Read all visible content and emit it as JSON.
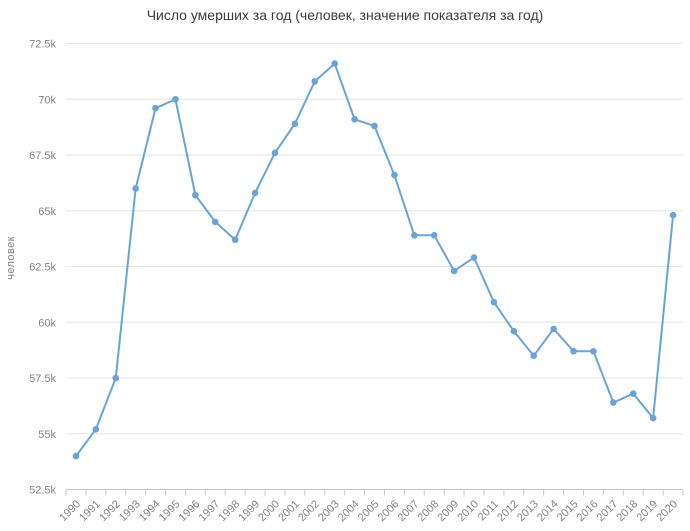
{
  "style": {
    "accent": "#68a4da",
    "grid_color": "#e6e6e6",
    "axis_color": "#c9c9c9",
    "tick_text_color": "#858585",
    "title_color": "#3d3d3d",
    "background": "#ffffff"
  },
  "chart_data": {
    "type": "line",
    "title": "Число умерших за год (человек, значение показателя за год)",
    "ylabel": "человек",
    "xlabel": "",
    "categories": [
      "1990",
      "1991",
      "1992",
      "1993",
      "1994",
      "1995",
      "1996",
      "1997",
      "1998",
      "1999",
      "2000",
      "2001",
      "2002",
      "2003",
      "2004",
      "2005",
      "2006",
      "2007",
      "2008",
      "2009",
      "2010",
      "2011",
      "2012",
      "2013",
      "2014",
      "2015",
      "2016",
      "2017",
      "2018",
      "2019",
      "2020"
    ],
    "values": [
      54000,
      55200,
      57500,
      66000,
      69600,
      70000,
      65700,
      64500,
      63700,
      65800,
      67600,
      68900,
      70800,
      71600,
      69100,
      68800,
      66600,
      63900,
      63900,
      62300,
      62900,
      60900,
      59600,
      58500,
      59700,
      58700,
      58700,
      56400,
      56800,
      55700,
      64800
    ],
    "ylim": [
      52500,
      72500
    ],
    "yticks": [
      {
        "value": 52500,
        "label": "52.5k"
      },
      {
        "value": 55000,
        "label": "55k"
      },
      {
        "value": 57500,
        "label": "57.5k"
      },
      {
        "value": 60000,
        "label": "60k"
      },
      {
        "value": 62500,
        "label": "62.5k"
      },
      {
        "value": 65000,
        "label": "65k"
      },
      {
        "value": 67500,
        "label": "67.5k"
      },
      {
        "value": 70000,
        "label": "70k"
      },
      {
        "value": 72500,
        "label": "72.5k"
      }
    ],
    "grid": true,
    "legend": false,
    "marker": "circle",
    "x_tick_rotation": -45
  }
}
